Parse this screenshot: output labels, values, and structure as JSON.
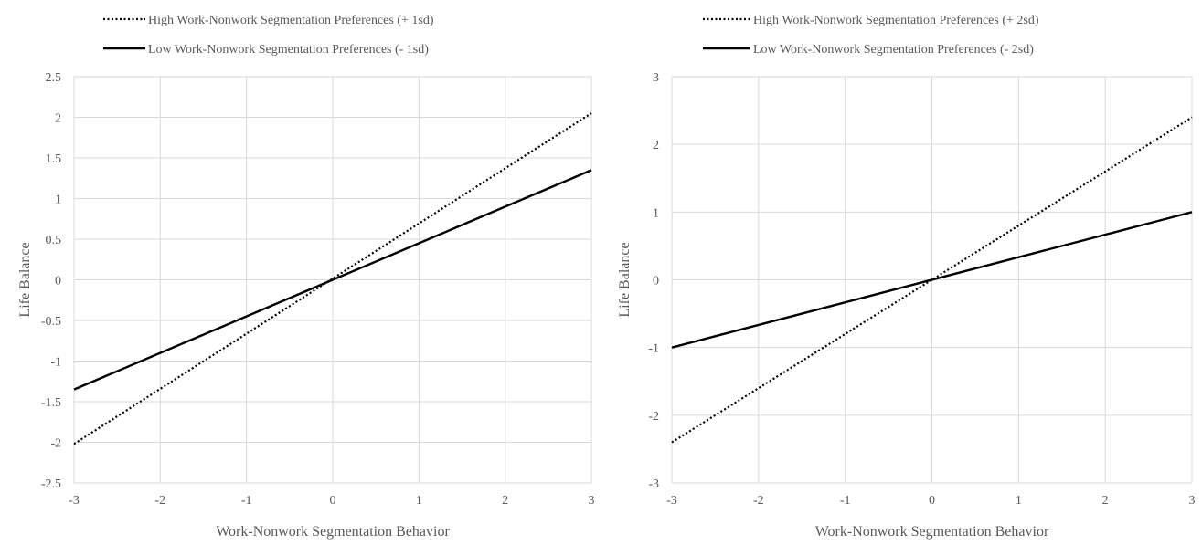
{
  "chart_data": [
    {
      "type": "line",
      "xlabel": "Work-Nonwork Segmentation Behavior",
      "ylabel": "Life Balance",
      "xlim": [
        -3,
        3
      ],
      "ylim": [
        -2.5,
        2.5
      ],
      "x_ticks": [
        "-3",
        "-2",
        "-1",
        "0",
        "1",
        "2",
        "3"
      ],
      "y_ticks": [
        "2.5",
        "2",
        "1.5",
        "1",
        "0.5",
        "0",
        "-0.5",
        "-1",
        "-1.5",
        "-2",
        "-2.5"
      ],
      "grid": true,
      "legend_position": "top-left",
      "series": [
        {
          "name": "High Work-Nonwork Segmentation Preferences (+ 1sd)",
          "style": "dotted",
          "color": "#000000",
          "x": [
            -3,
            3
          ],
          "y": [
            -2.02,
            2.05
          ]
        },
        {
          "name": "Low Work-Nonwork Segmentation Preferences (- 1sd)",
          "style": "solid",
          "color": "#000000",
          "x": [
            -3,
            3
          ],
          "y": [
            -1.35,
            1.35
          ]
        }
      ]
    },
    {
      "type": "line",
      "xlabel": "Work-Nonwork Segmentation Behavior",
      "ylabel": "Life Balance",
      "xlim": [
        -3,
        3
      ],
      "ylim": [
        -3,
        3
      ],
      "x_ticks": [
        "-3",
        "-2",
        "-1",
        "0",
        "1",
        "2",
        "3"
      ],
      "y_ticks": [
        "3",
        "2",
        "1",
        "0",
        "-1",
        "-2",
        "-3"
      ],
      "grid": true,
      "legend_position": "top-left",
      "series": [
        {
          "name": "High Work-Nonwork Segmentation Preferences (+ 2sd)",
          "style": "dotted",
          "color": "#000000",
          "x": [
            -3,
            3
          ],
          "y": [
            -2.4,
            2.4
          ]
        },
        {
          "name": "Low Work-Nonwork Segmentation Preferences (- 2sd)",
          "style": "solid",
          "color": "#000000",
          "x": [
            -3,
            3
          ],
          "y": [
            -1.0,
            1.0
          ]
        }
      ]
    }
  ]
}
